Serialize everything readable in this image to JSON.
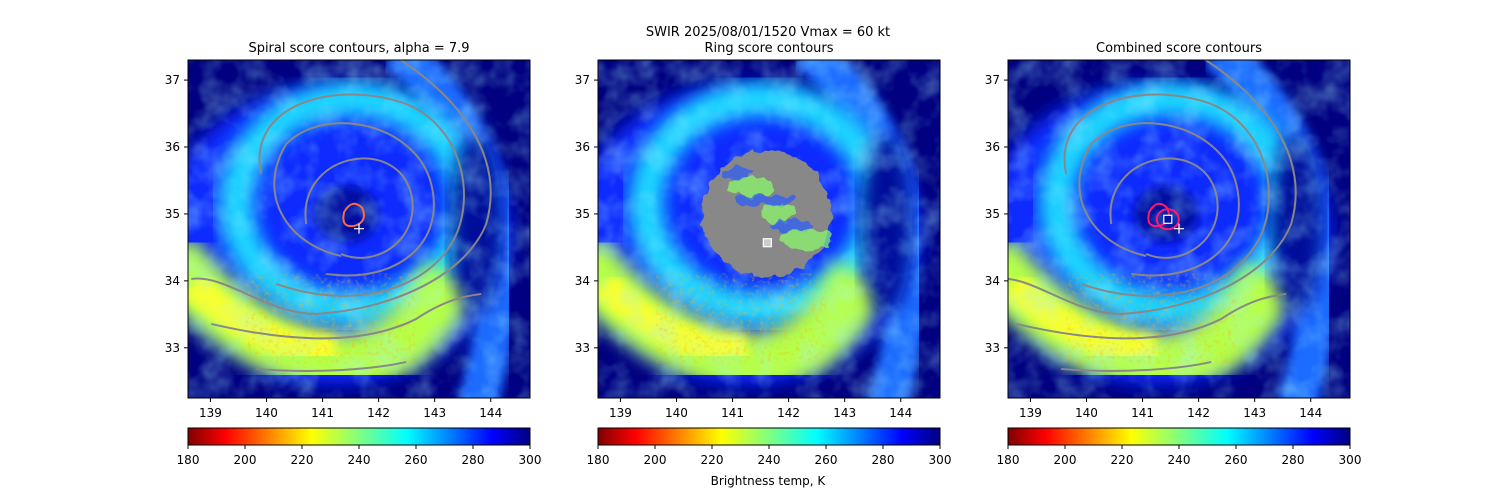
{
  "figure": {
    "suptitle": "SWIR  2025/08/01/1520    Vmax = 60 kt",
    "colorbar_label": "Brightness temp, K",
    "colormap": "jet",
    "background_color": "#000080",
    "contour_color": "#888888",
    "marker_color": "#ffffff",
    "center_ring_color": "#ff1a6e"
  },
  "chart_data": [
    {
      "type": "heatmap",
      "title": "Spiral score contours, alpha =  7.9",
      "xlabel": "",
      "ylabel": "",
      "xlim": [
        138.6,
        144.7
      ],
      "ylim": [
        32.25,
        37.3
      ],
      "xticks": [
        "139",
        "140",
        "141",
        "142",
        "143",
        "144"
      ],
      "yticks": [
        "33",
        "34",
        "35",
        "36",
        "37"
      ],
      "colorbar": {
        "range": [
          180,
          300
        ],
        "ticks": [
          "180",
          "200",
          "220",
          "240",
          "260",
          "280",
          "300"
        ]
      },
      "markers": [
        {
          "kind": "cross",
          "lon": 141.65,
          "lat": 34.78
        }
      ],
      "contours": "spiral rings"
    },
    {
      "type": "heatmap",
      "title": "Ring score contours",
      "xlabel": "",
      "ylabel": "",
      "xlim": [
        138.6,
        144.7
      ],
      "ylim": [
        32.25,
        37.3
      ],
      "xticks": [
        "139",
        "140",
        "141",
        "142",
        "143",
        "144"
      ],
      "yticks": [
        "33",
        "34",
        "35",
        "36",
        "37"
      ],
      "colorbar": {
        "range": [
          180,
          300
        ],
        "ticks": [
          "180",
          "200",
          "220",
          "240",
          "260",
          "280",
          "300"
        ]
      },
      "markers": [
        {
          "kind": "square",
          "lon": 141.62,
          "lat": 34.57
        }
      ],
      "contours": "dense ring disc",
      "ring_disc": {
        "lon": 141.6,
        "lat": 35.0,
        "r_lon": 1.15,
        "r_lat": 0.95
      }
    },
    {
      "type": "heatmap",
      "title": "Combined score contours",
      "xlabel": "",
      "ylabel": "",
      "xlim": [
        138.6,
        144.7
      ],
      "ylim": [
        32.25,
        37.3
      ],
      "xticks": [
        "139",
        "140",
        "141",
        "142",
        "143",
        "144"
      ],
      "yticks": [
        "33",
        "34",
        "35",
        "36",
        "37"
      ],
      "colorbar": {
        "range": [
          180,
          300
        ],
        "ticks": [
          "180",
          "200",
          "220",
          "240",
          "260",
          "280",
          "300"
        ]
      },
      "markers": [
        {
          "kind": "square",
          "lon": 141.45,
          "lat": 34.92
        },
        {
          "kind": "cross",
          "lon": 141.65,
          "lat": 34.78
        }
      ],
      "contours": "spiral rings"
    }
  ]
}
